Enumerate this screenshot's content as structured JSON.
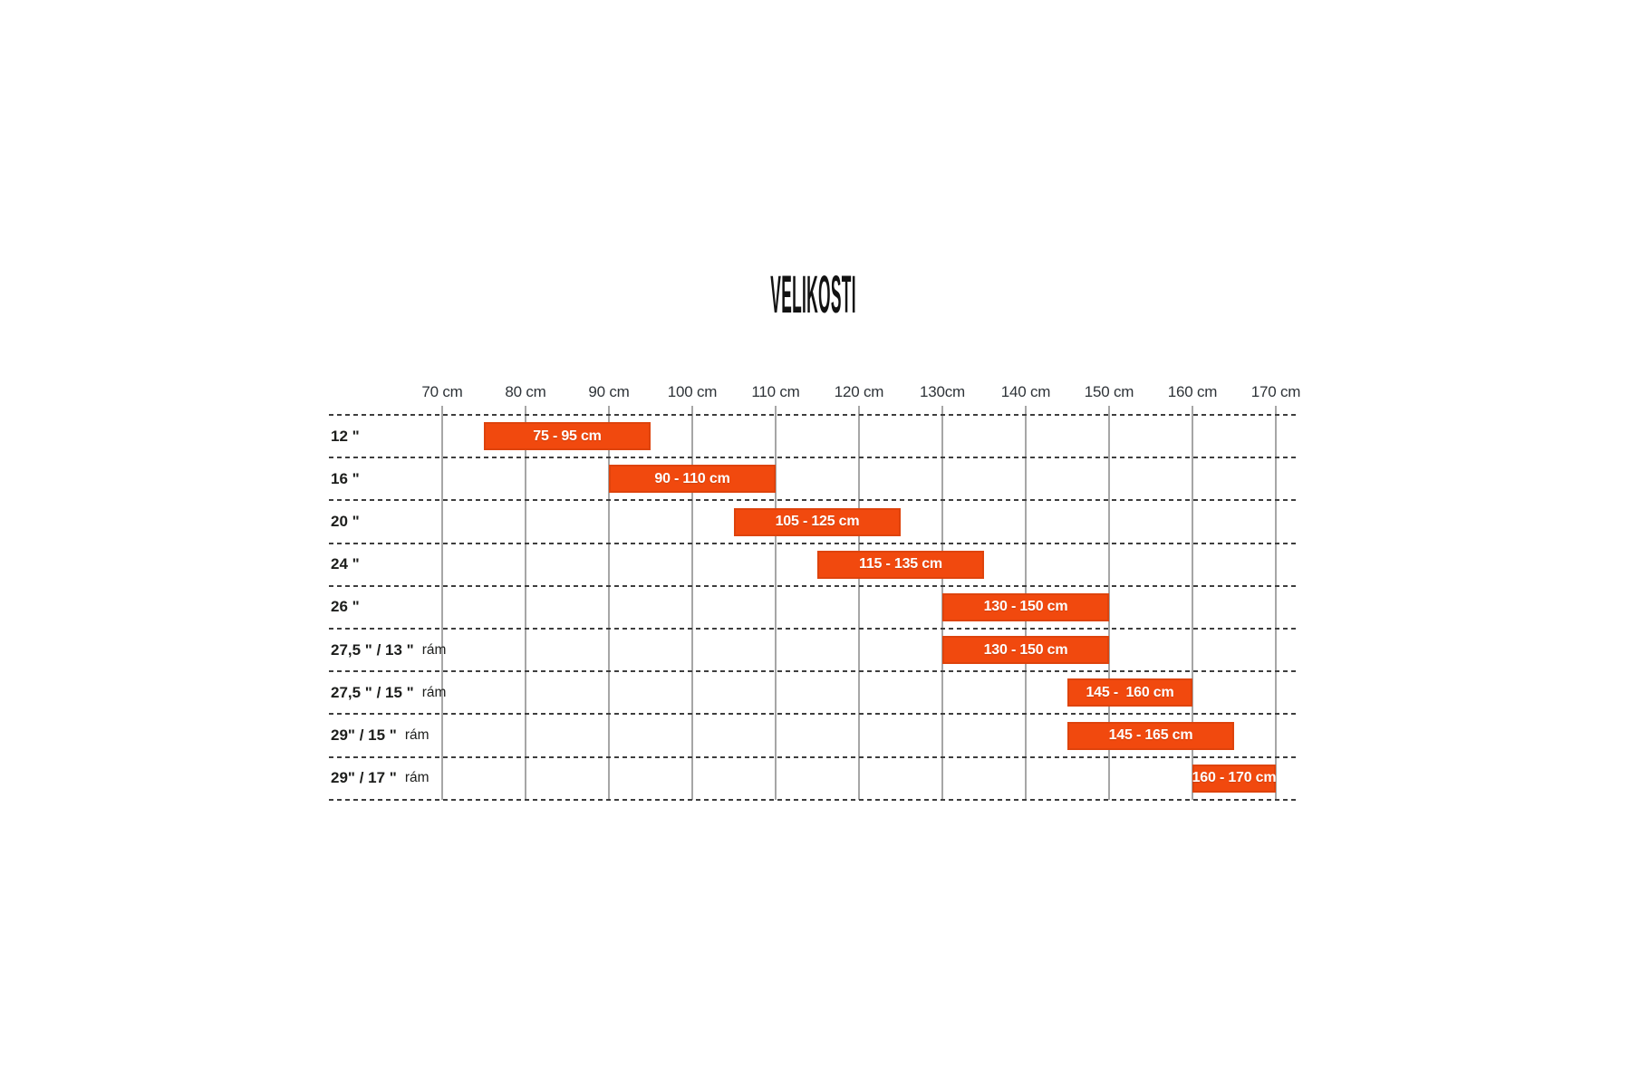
{
  "title": "VELIKOSTI",
  "colors": {
    "bar_fill": "#F1490E",
    "bar_text": "#FFFFFF",
    "axis_text": "#2E3338",
    "row_label_text": "#1D1E1C",
    "gridline": "#A6A6A6",
    "separator": "#3E3E3E"
  },
  "chart_data": {
    "type": "bar",
    "variant": "horizontal-range",
    "title": "VELIKOSTI",
    "x_unit": "cm",
    "x_range": [
      70,
      170
    ],
    "grid": true,
    "legend": false,
    "x_ticks": [
      {
        "value": 70,
        "label": "70 cm"
      },
      {
        "value": 80,
        "label": "80 cm"
      },
      {
        "value": 90,
        "label": "90 cm"
      },
      {
        "value": 100,
        "label": "100 cm"
      },
      {
        "value": 110,
        "label": "110 cm"
      },
      {
        "value": 120,
        "label": "120 cm"
      },
      {
        "value": 130,
        "label": "130cm"
      },
      {
        "value": 140,
        "label": "140 cm"
      },
      {
        "value": 150,
        "label": "150 cm"
      },
      {
        "value": 160,
        "label": "160 cm"
      },
      {
        "value": 170,
        "label": "170 cm"
      }
    ],
    "rows": [
      {
        "wheel_size": "12 \"",
        "frame": "",
        "range_cm": [
          75,
          95
        ],
        "bar_label": "75 - 95 cm"
      },
      {
        "wheel_size": "16 \"",
        "frame": "",
        "range_cm": [
          90,
          110
        ],
        "bar_label": "90 - 110 cm"
      },
      {
        "wheel_size": "20 \"",
        "frame": "",
        "range_cm": [
          105,
          125
        ],
        "bar_label": "105 - 125 cm"
      },
      {
        "wheel_size": "24 \"",
        "frame": "",
        "range_cm": [
          115,
          135
        ],
        "bar_label": "115 - 135 cm"
      },
      {
        "wheel_size": "26 \"",
        "frame": "",
        "range_cm": [
          130,
          150
        ],
        "bar_label": "130 - 150 cm"
      },
      {
        "wheel_size": "27,5 \" / 13 \"",
        "frame": "rám",
        "range_cm": [
          130,
          150
        ],
        "bar_label": "130 - 150 cm"
      },
      {
        "wheel_size": "27,5 \" / 15 \"",
        "frame": "rám",
        "range_cm": [
          145,
          160
        ],
        "bar_label": "145 -  160 cm"
      },
      {
        "wheel_size": "29\" / 15 \"",
        "frame": "rám",
        "range_cm": [
          145,
          165
        ],
        "bar_label": "145 - 165 cm"
      },
      {
        "wheel_size": "29\" / 17 \"",
        "frame": "rám",
        "range_cm": [
          160,
          170
        ],
        "bar_label": "160 - 170 cm"
      }
    ]
  }
}
